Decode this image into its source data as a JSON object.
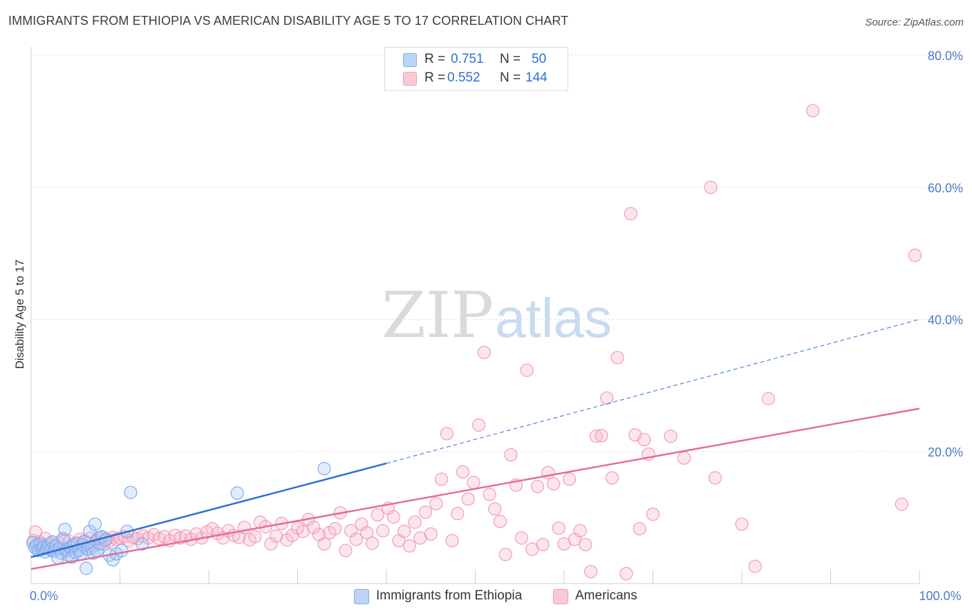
{
  "title": "IMMIGRANTS FROM ETHIOPIA VS AMERICAN DISABILITY AGE 5 TO 17 CORRELATION CHART",
  "source": "Source: ZipAtlas.com",
  "watermark": {
    "zip": "ZIP",
    "atlas": "atlas"
  },
  "legend": {
    "r_label": "R =",
    "n_label": "N =",
    "rows": [
      {
        "r": "0.751",
        "n": "50",
        "color": "#aac8f5"
      },
      {
        "r": "0.552",
        "n": "144",
        "color": "#f7b8cb"
      }
    ]
  },
  "bottom_legend": [
    {
      "label": "Immigrants from Ethiopia",
      "color": "#aac8f5"
    },
    {
      "label": "Americans",
      "color": "#f7b8cb"
    }
  ],
  "chart_data": {
    "type": "scatter",
    "title": "IMMIGRANTS FROM ETHIOPIA VS AMERICAN DISABILITY AGE 5 TO 17 CORRELATION CHART",
    "xlabel": "",
    "ylabel": "Disability Age 5 to 17",
    "xlim": [
      0,
      100
    ],
    "ylim": [
      0,
      80
    ],
    "x_tick_labels": [
      {
        "value": 0,
        "label": "0.0%"
      },
      {
        "value": 100,
        "label": "100.0%"
      }
    ],
    "y_tick_labels": [
      {
        "value": 20,
        "label": "20.0%"
      },
      {
        "value": 40,
        "label": "40.0%"
      },
      {
        "value": 60,
        "label": "60.0%"
      },
      {
        "value": 80,
        "label": "80.0%"
      }
    ],
    "grid": true,
    "series": [
      {
        "name": "Immigrants from Ethiopia",
        "color": "#7eaaf0",
        "line_color": "#2f6ed3",
        "trend": {
          "x0": 0,
          "y0": 4.0,
          "x1": 40,
          "y1": 18.2,
          "dashed_to_x": 100,
          "dashed_to_y": 40.0
        },
        "points": [
          [
            0.2,
            6.2
          ],
          [
            0.4,
            5.5
          ],
          [
            0.6,
            5.8
          ],
          [
            0.8,
            5.0
          ],
          [
            1.0,
            6.0
          ],
          [
            1.2,
            5.2
          ],
          [
            1.4,
            5.6
          ],
          [
            1.6,
            4.8
          ],
          [
            1.8,
            5.4
          ],
          [
            2.0,
            5.9
          ],
          [
            2.2,
            5.1
          ],
          [
            2.4,
            6.3
          ],
          [
            2.6,
            4.9
          ],
          [
            2.8,
            5.7
          ],
          [
            3.0,
            3.9
          ],
          [
            3.2,
            5.3
          ],
          [
            3.4,
            4.6
          ],
          [
            3.6,
            6.8
          ],
          [
            3.8,
            8.2
          ],
          [
            4.0,
            5.1
          ],
          [
            4.2,
            4.3
          ],
          [
            4.4,
            5.5
          ],
          [
            4.6,
            4.0
          ],
          [
            4.8,
            5.8
          ],
          [
            5.0,
            4.7
          ],
          [
            5.2,
            6.1
          ],
          [
            5.4,
            5.0
          ],
          [
            5.6,
            4.5
          ],
          [
            5.8,
            5.9
          ],
          [
            6.0,
            6.4
          ],
          [
            6.2,
            2.3
          ],
          [
            6.4,
            5.2
          ],
          [
            6.6,
            7.9
          ],
          [
            6.8,
            5.4
          ],
          [
            7.0,
            4.6
          ],
          [
            7.2,
            9.0
          ],
          [
            7.4,
            5.0
          ],
          [
            7.6,
            6.9
          ],
          [
            7.8,
            6.0
          ],
          [
            8.0,
            7.1
          ],
          [
            8.4,
            6.6
          ],
          [
            8.8,
            4.3
          ],
          [
            9.2,
            3.6
          ],
          [
            9.6,
            4.5
          ],
          [
            10.2,
            5.0
          ],
          [
            10.8,
            7.9
          ],
          [
            11.2,
            13.8
          ],
          [
            12.5,
            6.0
          ],
          [
            23.2,
            13.7
          ],
          [
            33.0,
            17.4
          ]
        ]
      },
      {
        "name": "Americans",
        "color": "#f49ab6",
        "line_color": "#e46d96",
        "trend": {
          "x0": 0,
          "y0": 2.2,
          "x1": 100,
          "y1": 26.5
        },
        "points": [
          [
            0.3,
            6.5
          ],
          [
            0.5,
            7.8
          ],
          [
            0.8,
            5.2
          ],
          [
            1.0,
            6.3
          ],
          [
            1.3,
            5.8
          ],
          [
            1.6,
            6.8
          ],
          [
            1.9,
            5.4
          ],
          [
            2.2,
            6.1
          ],
          [
            2.5,
            4.9
          ],
          [
            2.8,
            5.7
          ],
          [
            3.1,
            6.2
          ],
          [
            3.4,
            5.3
          ],
          [
            3.7,
            6.6
          ],
          [
            4.0,
            5.0
          ],
          [
            4.3,
            6.4
          ],
          [
            4.6,
            5.5
          ],
          [
            4.9,
            6.0
          ],
          [
            5.2,
            5.1
          ],
          [
            5.5,
            6.7
          ],
          [
            5.8,
            5.6
          ],
          [
            6.1,
            6.3
          ],
          [
            6.4,
            5.2
          ],
          [
            6.7,
            6.9
          ],
          [
            7.0,
            5.8
          ],
          [
            7.3,
            6.5
          ],
          [
            7.6,
            6.1
          ],
          [
            7.9,
            7.0
          ],
          [
            8.2,
            6.0
          ],
          [
            8.5,
            6.8
          ],
          [
            8.8,
            6.4
          ],
          [
            9.2,
            7.0
          ],
          [
            9.6,
            6.7
          ],
          [
            10.0,
            6.9
          ],
          [
            10.5,
            7.1
          ],
          [
            11.0,
            6.5
          ],
          [
            11.5,
            7.0
          ],
          [
            12.0,
            6.8
          ],
          [
            12.6,
            7.2
          ],
          [
            13.2,
            6.9
          ],
          [
            13.8,
            7.4
          ],
          [
            14.4,
            6.8
          ],
          [
            15.0,
            7.1
          ],
          [
            15.6,
            6.5
          ],
          [
            16.2,
            7.3
          ],
          [
            16.8,
            6.9
          ],
          [
            17.4,
            7.2
          ],
          [
            18.0,
            6.7
          ],
          [
            18.6,
            7.5
          ],
          [
            19.2,
            6.9
          ],
          [
            19.8,
            7.8
          ],
          [
            20.4,
            8.3
          ],
          [
            21.0,
            7.6
          ],
          [
            21.6,
            6.9
          ],
          [
            22.2,
            8.0
          ],
          [
            22.8,
            7.3
          ],
          [
            23.4,
            7.0
          ],
          [
            24.0,
            8.5
          ],
          [
            24.6,
            6.6
          ],
          [
            25.2,
            7.1
          ],
          [
            25.8,
            9.3
          ],
          [
            26.4,
            8.6
          ],
          [
            27.0,
            6.0
          ],
          [
            27.6,
            7.2
          ],
          [
            28.2,
            9.1
          ],
          [
            28.8,
            6.6
          ],
          [
            29.4,
            7.3
          ],
          [
            30.0,
            8.4
          ],
          [
            30.6,
            7.9
          ],
          [
            31.2,
            9.7
          ],
          [
            31.8,
            8.5
          ],
          [
            32.4,
            7.4
          ],
          [
            33.0,
            6.0
          ],
          [
            33.6,
            7.7
          ],
          [
            34.2,
            8.3
          ],
          [
            34.8,
            10.7
          ],
          [
            35.4,
            5.0
          ],
          [
            36.0,
            8.0
          ],
          [
            36.6,
            6.7
          ],
          [
            37.2,
            9.0
          ],
          [
            37.8,
            7.7
          ],
          [
            38.4,
            6.1
          ],
          [
            39.0,
            10.4
          ],
          [
            39.6,
            8.0
          ],
          [
            40.2,
            11.4
          ],
          [
            40.8,
            10.1
          ],
          [
            41.4,
            6.5
          ],
          [
            42.0,
            7.9
          ],
          [
            42.6,
            5.7
          ],
          [
            43.2,
            9.3
          ],
          [
            43.8,
            6.9
          ],
          [
            44.4,
            10.8
          ],
          [
            45.0,
            7.5
          ],
          [
            45.6,
            12.1
          ],
          [
            46.2,
            15.8
          ],
          [
            46.8,
            22.7
          ],
          [
            47.4,
            6.5
          ],
          [
            48.0,
            10.6
          ],
          [
            48.6,
            16.9
          ],
          [
            49.2,
            12.8
          ],
          [
            49.8,
            15.3
          ],
          [
            50.4,
            24.0
          ],
          [
            51.0,
            35.0
          ],
          [
            51.6,
            13.5
          ],
          [
            52.2,
            11.3
          ],
          [
            52.8,
            9.4
          ],
          [
            53.4,
            4.4
          ],
          [
            54.0,
            19.5
          ],
          [
            54.6,
            14.9
          ],
          [
            55.2,
            6.9
          ],
          [
            55.8,
            32.3
          ],
          [
            56.4,
            5.2
          ],
          [
            57.0,
            14.7
          ],
          [
            57.6,
            5.9
          ],
          [
            58.2,
            16.8
          ],
          [
            58.8,
            15.1
          ],
          [
            59.4,
            8.4
          ],
          [
            60.0,
            6.0
          ],
          [
            60.6,
            15.8
          ],
          [
            61.2,
            6.7
          ],
          [
            61.8,
            8.0
          ],
          [
            62.4,
            5.9
          ],
          [
            63.0,
            1.8
          ],
          [
            63.6,
            22.3
          ],
          [
            64.2,
            22.4
          ],
          [
            64.8,
            28.1
          ],
          [
            65.4,
            16.0
          ],
          [
            66.0,
            34.2
          ],
          [
            67.0,
            1.5
          ],
          [
            67.5,
            56.0
          ],
          [
            68.0,
            22.5
          ],
          [
            68.5,
            8.3
          ],
          [
            69.0,
            21.8
          ],
          [
            69.5,
            19.6
          ],
          [
            70.0,
            10.5
          ],
          [
            72.0,
            22.3
          ],
          [
            73.5,
            19.0
          ],
          [
            76.5,
            60.0
          ],
          [
            77.0,
            16.0
          ],
          [
            80.0,
            9.0
          ],
          [
            81.5,
            2.6
          ],
          [
            83.0,
            28.0
          ],
          [
            88.0,
            71.6
          ],
          [
            98.0,
            12.0
          ],
          [
            99.5,
            49.7
          ]
        ]
      }
    ]
  }
}
